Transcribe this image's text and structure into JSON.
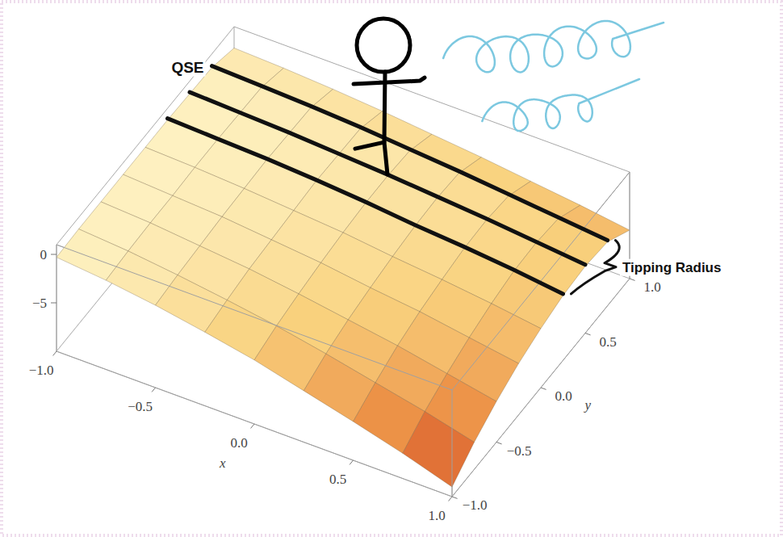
{
  "chart_data": {
    "type": "surface3d",
    "x": [
      -1,
      -0.75,
      -0.5,
      -0.25,
      0,
      0.25,
      0.5,
      0.75,
      1
    ],
    "y": [
      -1,
      -0.75,
      -0.5,
      -0.25,
      0,
      0.25,
      0.5,
      0.75,
      1
    ],
    "z": [
      [
        -0.3,
        -0.8,
        -1.5,
        -2.4,
        -3.4,
        -4.7,
        -6.0,
        -7.4,
        -9.0
      ],
      [
        -0.2,
        -0.6,
        -1.2,
        -1.9,
        -2.7,
        -3.7,
        -4.8,
        -5.9,
        -7.2
      ],
      [
        -0.2,
        -0.5,
        -1.0,
        -1.5,
        -2.2,
        -3.0,
        -3.8,
        -4.8,
        -5.8
      ],
      [
        -0.2,
        -0.5,
        -0.8,
        -1.3,
        -1.8,
        -2.5,
        -3.1,
        -3.9,
        -4.7
      ],
      [
        -0.2,
        -0.4,
        -0.7,
        -1.1,
        -1.5,
        -2.1,
        -2.6,
        -3.2,
        -3.9
      ],
      [
        -0.2,
        -0.4,
        -0.6,
        -0.9,
        -1.3,
        -1.8,
        -2.2,
        -2.7,
        -3.3
      ],
      [
        -0.3,
        -0.5,
        -0.7,
        -1.0,
        -1.3,
        -1.7,
        -2.1,
        -2.6,
        -3.1
      ],
      [
        -0.4,
        -0.6,
        -0.8,
        -1.1,
        -1.5,
        -1.9,
        -2.4,
        -2.9,
        -3.4
      ],
      [
        -1.2,
        -1.4,
        -1.7,
        -2.1,
        -2.6,
        -3.1,
        -3.7,
        -4.3,
        -5.0
      ]
    ],
    "xlim": [
      -1,
      1
    ],
    "ylim": [
      -1,
      1
    ],
    "zlim": [
      -10,
      1
    ],
    "xticks": [
      {
        "value": -1,
        "label": "−1.0"
      },
      {
        "value": -0.5,
        "label": "−0.5"
      },
      {
        "value": 0,
        "label": "0.0"
      },
      0.5,
      {
        "value": 1,
        "label": "1.0"
      }
    ],
    "yticks": [
      {
        "value": -1,
        "label": "−1.0"
      },
      {
        "value": -0.5,
        "label": "−0.5"
      },
      {
        "value": 0,
        "label": "0.0"
      },
      0.5,
      {
        "value": 1,
        "label": "1.0"
      }
    ],
    "zticks": [
      0,
      {
        "value": -5,
        "label": "−5"
      }
    ],
    "x_label": "x",
    "y_label": "y",
    "annotations": [
      "QSE",
      "Tipping Radius"
    ]
  }
}
